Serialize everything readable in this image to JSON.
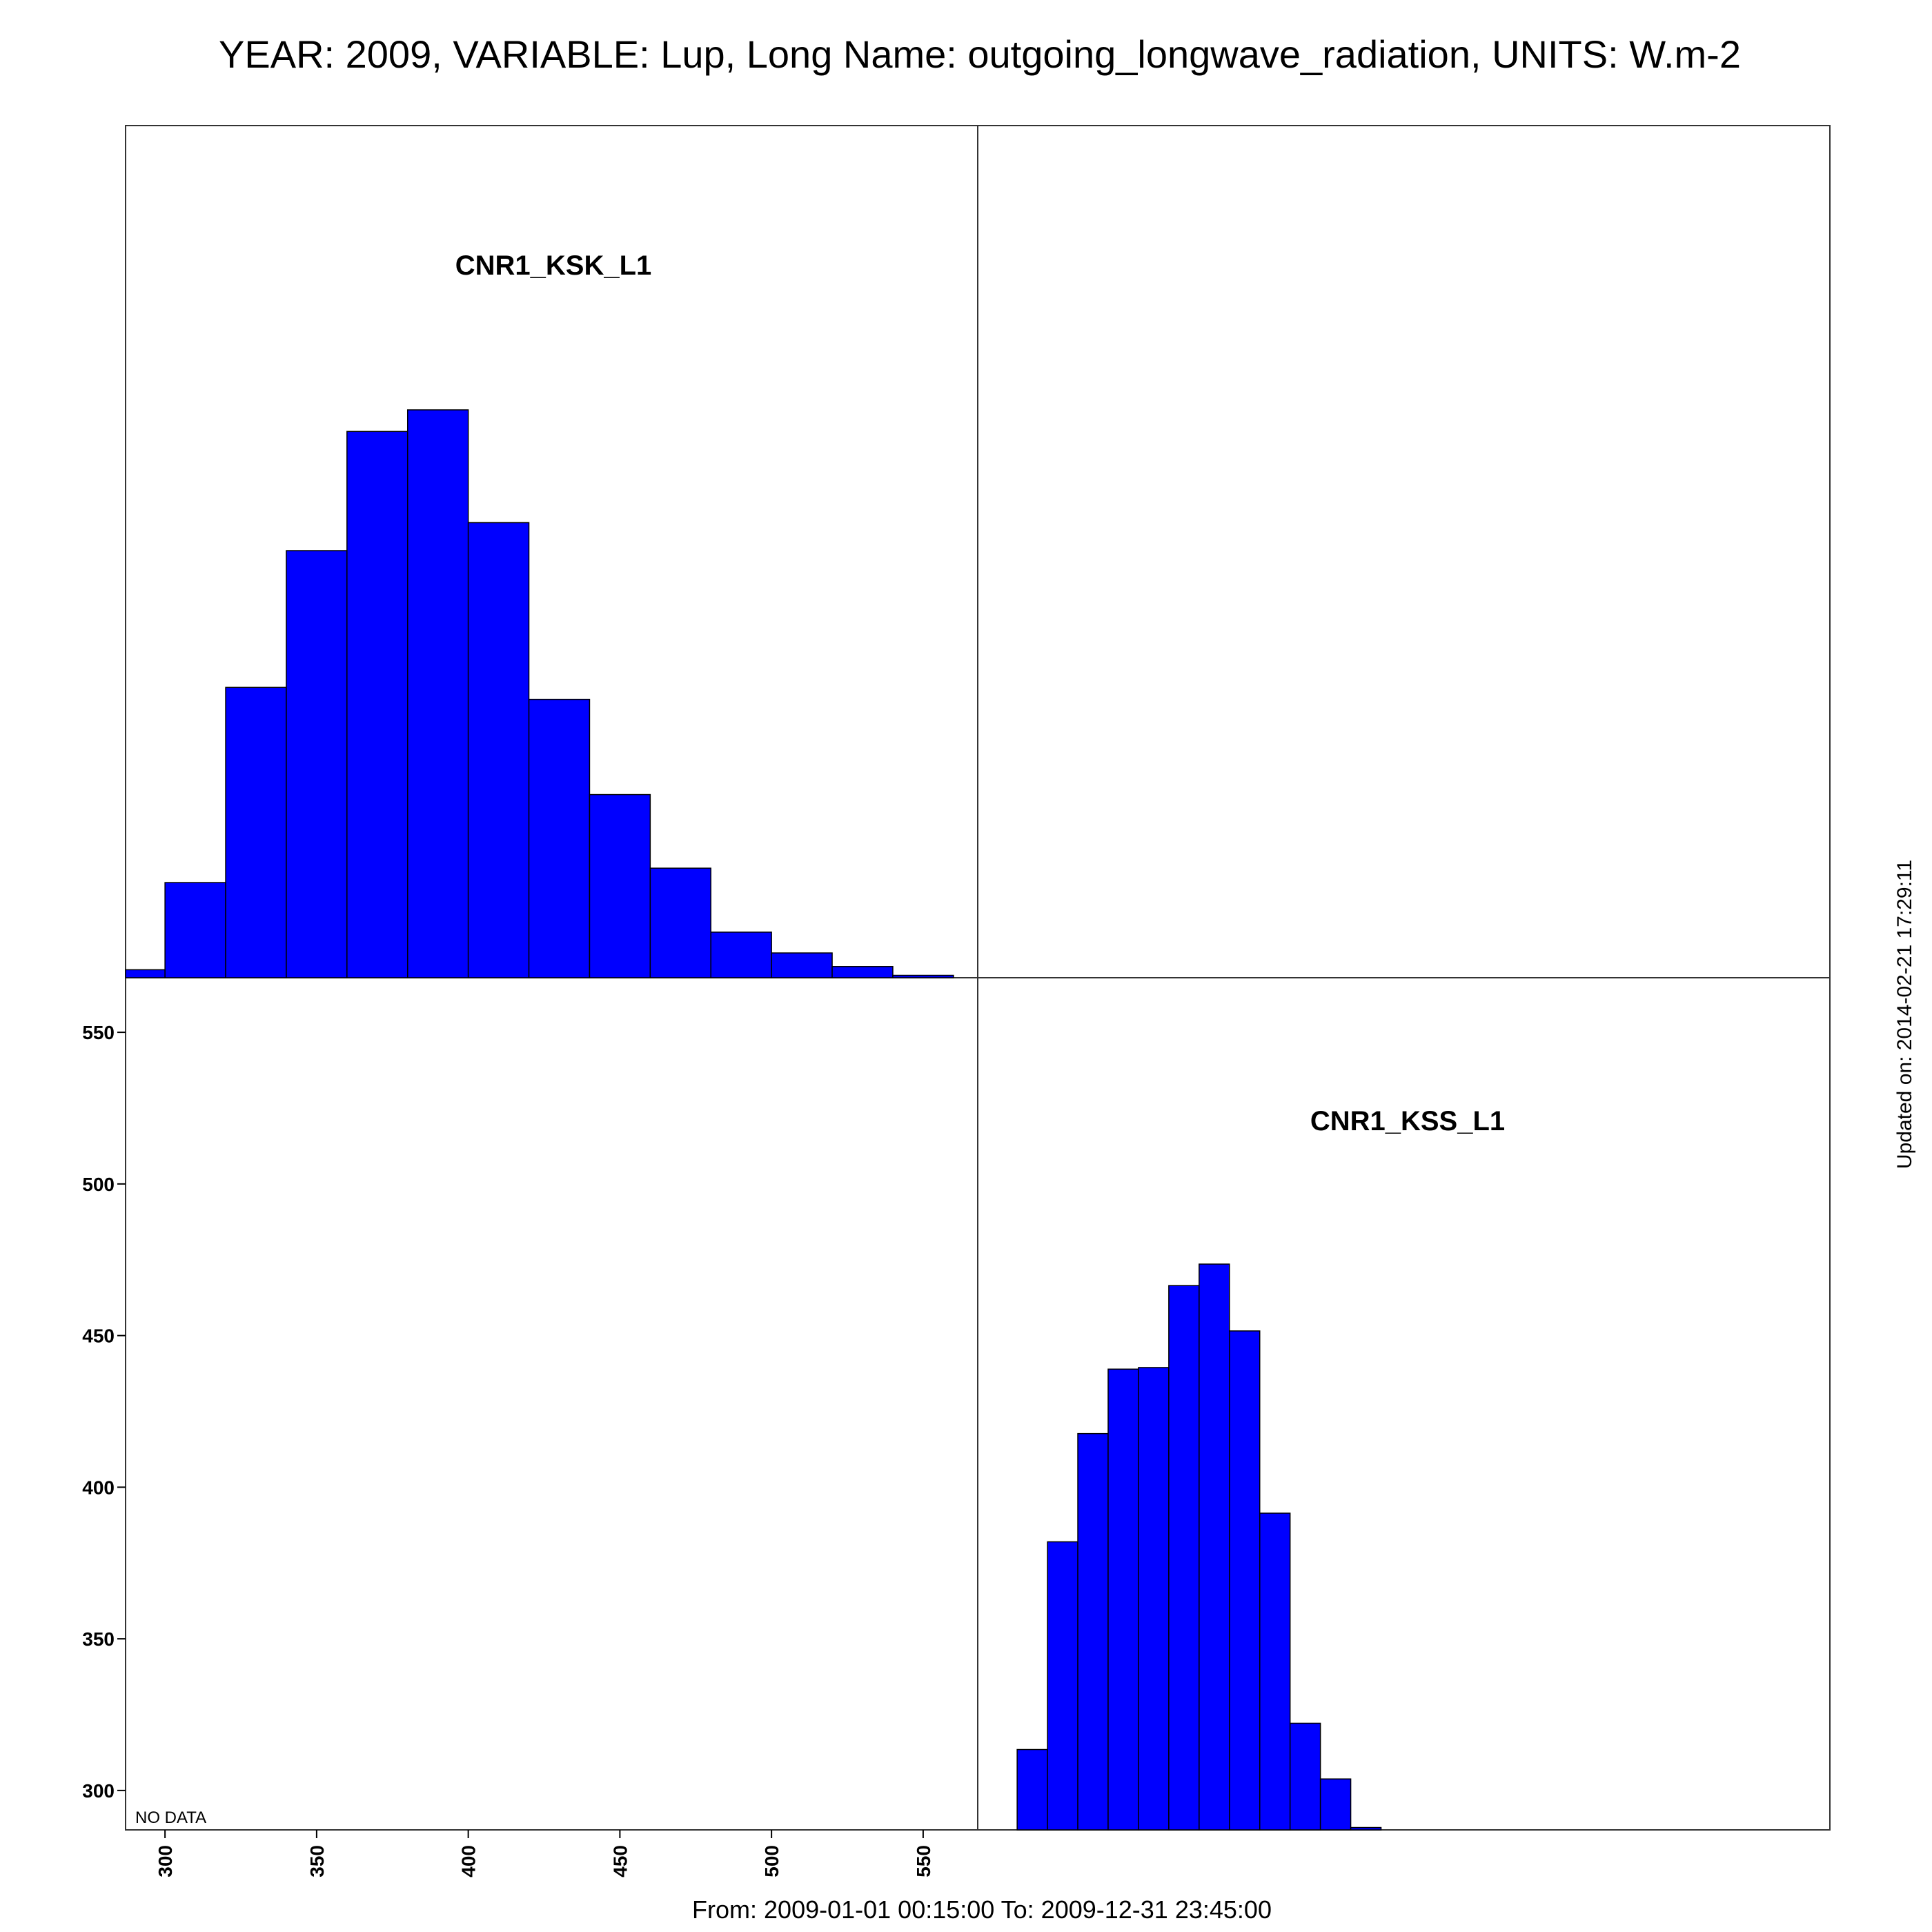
{
  "page": {
    "title": "YEAR: 2009, VARIABLE: Lup, Long Name: outgoing_longwave_radiation, UNITS: W.m-2",
    "footer": "From: 2009-01-01 00:15:00 To: 2009-12-31 23:45:00",
    "updated": "Updated on: 2014-02-21 17:29:11"
  },
  "colors": {
    "bar_fill": "#0000ff",
    "bar_stroke": "#000000",
    "frame": "#333333"
  },
  "chart_data": [
    {
      "type": "bar",
      "panel": "top-left",
      "label": "CNR1_KSK_L1",
      "x_range": [
        287,
        568
      ],
      "bin_width": 20,
      "bins": [
        {
          "start": 280,
          "end": 300,
          "density": 0.001
        },
        {
          "start": 300,
          "end": 320,
          "density": 0.0119
        },
        {
          "start": 320,
          "end": 340,
          "density": 0.0363
        },
        {
          "start": 340,
          "end": 360,
          "density": 0.0534
        },
        {
          "start": 360,
          "end": 380,
          "density": 0.0683
        },
        {
          "start": 380,
          "end": 400,
          "density": 0.071
        },
        {
          "start": 400,
          "end": 420,
          "density": 0.0569
        },
        {
          "start": 420,
          "end": 440,
          "density": 0.0348
        },
        {
          "start": 440,
          "end": 460,
          "density": 0.0229
        },
        {
          "start": 460,
          "end": 480,
          "density": 0.0137
        },
        {
          "start": 480,
          "end": 500,
          "density": 0.0057
        },
        {
          "start": 500,
          "end": 520,
          "density": 0.0031
        },
        {
          "start": 520,
          "end": 540,
          "density": 0.0014
        },
        {
          "start": 540,
          "end": 560,
          "density": 0.0003
        }
      ]
    },
    {
      "type": "bar",
      "panel": "bottom-right",
      "label": "CNR1_KSS_L1",
      "x_range": [
        287,
        568
      ],
      "bin_width": 10,
      "bins": [
        {
          "start": 300,
          "end": 310,
          "density": 0.0101
        },
        {
          "start": 310,
          "end": 320,
          "density": 0.0362
        },
        {
          "start": 320,
          "end": 330,
          "density": 0.0498
        },
        {
          "start": 330,
          "end": 340,
          "density": 0.0579
        },
        {
          "start": 340,
          "end": 350,
          "density": 0.0581
        },
        {
          "start": 350,
          "end": 360,
          "density": 0.0684
        },
        {
          "start": 360,
          "end": 370,
          "density": 0.0711
        },
        {
          "start": 370,
          "end": 380,
          "density": 0.0627
        },
        {
          "start": 380,
          "end": 390,
          "density": 0.0398
        },
        {
          "start": 390,
          "end": 400,
          "density": 0.0134
        },
        {
          "start": 400,
          "end": 410,
          "density": 0.0064
        },
        {
          "start": 410,
          "end": 420,
          "density": 0.0003
        }
      ]
    },
    {
      "type": "scatter",
      "panel": "bottom-left",
      "note": "NO DATA",
      "x_range": [
        287,
        568
      ],
      "y_range": [
        287,
        568
      ],
      "x_ticks": [
        300,
        350,
        400,
        450,
        500,
        550
      ],
      "y_ticks": [
        300,
        350,
        400,
        450,
        500,
        550
      ],
      "points": []
    },
    {
      "type": "scatter",
      "panel": "top-right",
      "points": []
    }
  ]
}
